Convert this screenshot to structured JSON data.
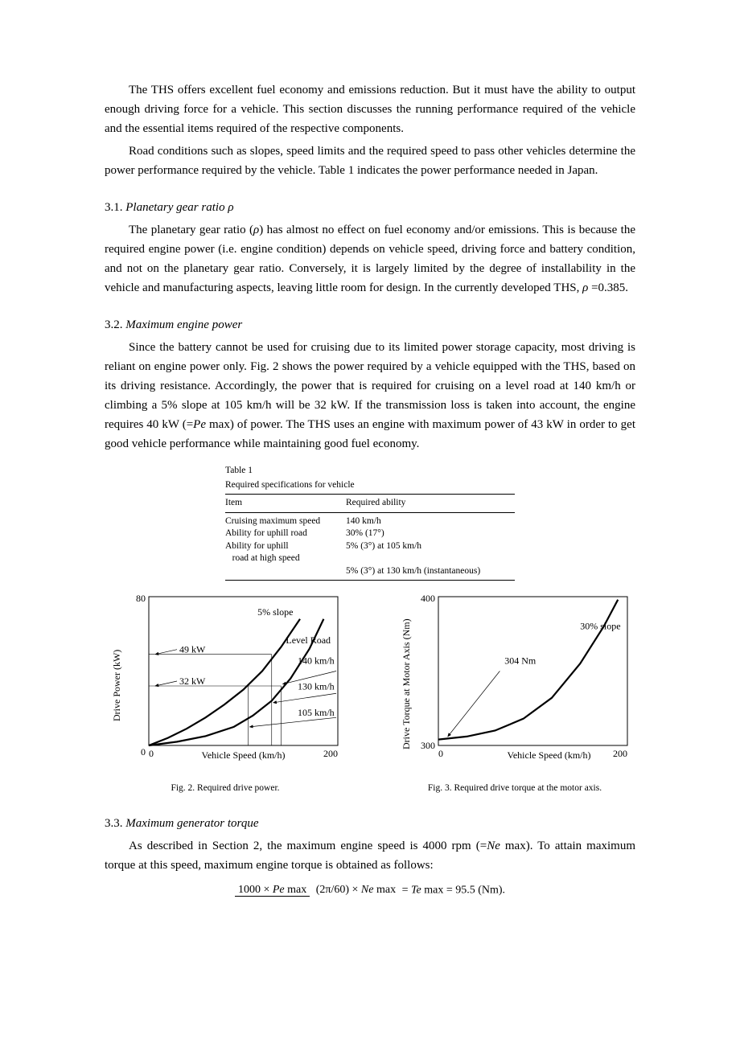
{
  "intro": {
    "p1": "The THS offers excellent fuel economy and emissions reduction. But it must have the ability to output enough driving force for a vehicle. This section discusses the running performance required of the vehicle and the essential items required of the respective components.",
    "p2": "Road conditions such as slopes, speed limits and the required speed to pass other vehicles determine the power performance required by the vehicle. Table 1 indicates the power performance needed in Japan."
  },
  "sec31": {
    "heading_num": "3.1. ",
    "heading_text": "Planetary gear ratio ρ",
    "p1a": "The planetary gear ratio (",
    "p1b": ") has almost no effect on fuel economy and/or emissions. This is because the required engine power (i.e. engine condition) depends on vehicle speed, driving force and battery condition, and not on the planetary gear ratio. Conversely, it is largely limited by the degree of installability in the vehicle and manufacturing aspects, leaving little room for design. In the currently developed THS, ",
    "rho": "ρ",
    "p1c": " =0.385."
  },
  "sec32": {
    "heading_num": "3.2. ",
    "heading_text": "Maximum engine power",
    "p1a": "Since the battery cannot be used for cruising due to its limited power storage capacity, most driving is reliant on engine power only. Fig. 2 shows the power required by a vehicle equipped with the THS, based on its driving resistance. Accordingly, the power that is required for cruising on a level road at 140 km/h or climbing a 5% slope at 105 km/h will be 32 kW. If the transmission loss is taken into account, the engine requires 40 kW (=",
    "pe": "Pe",
    "p1b": " max) of power. The THS uses an engine with maximum power of 43 kW in order to get good vehicle performance while maintaining good fuel economy."
  },
  "table1": {
    "title": "Table 1",
    "caption": "Required specifications for vehicle",
    "head_col1": "Item",
    "head_col2": "Required ability",
    "rows": [
      {
        "c1": "Cruising maximum speed",
        "c2": "140 km/h"
      },
      {
        "c1": "Ability for uphill road",
        "c2": "30% (17°)"
      },
      {
        "c1": "Ability for uphill",
        "c2": "5% (3°) at 105 km/h"
      },
      {
        "c1": "   road at high speed",
        "c2": ""
      },
      {
        "c1": "",
        "c2": "5% (3°) at 130 km/h (instantaneous)"
      }
    ]
  },
  "fig2": {
    "caption": "Fig. 2.  Required drive power.",
    "xlabel": "Vehicle Speed (km/h)",
    "ylabel": "Drive Power (kW)",
    "xlim": [
      0,
      200
    ],
    "ylim": [
      0,
      80
    ],
    "x_ticks": [
      "0",
      "200"
    ],
    "y_ticks": [
      "0",
      "80"
    ],
    "curves": {
      "slope5": {
        "label": "5% slope",
        "color": "#000000",
        "width": 2.2,
        "points": [
          [
            0,
            0
          ],
          [
            20,
            4
          ],
          [
            40,
            9
          ],
          [
            60,
            15
          ],
          [
            80,
            22
          ],
          [
            100,
            30
          ],
          [
            120,
            40
          ],
          [
            140,
            53
          ],
          [
            160,
            68
          ]
        ]
      },
      "level": {
        "label": "Level Road",
        "color": "#000000",
        "width": 2.2,
        "points": [
          [
            0,
            0
          ],
          [
            30,
            2
          ],
          [
            60,
            5
          ],
          [
            90,
            10
          ],
          [
            110,
            16
          ],
          [
            130,
            24
          ],
          [
            150,
            36
          ],
          [
            170,
            52
          ],
          [
            185,
            68
          ]
        ]
      }
    },
    "annotations": {
      "kw49": "49 kW",
      "kw32": "32 kW",
      "s140": "140 km/h",
      "s130": "130 km/h",
      "s105": "105 km/h"
    },
    "guides": {
      "h49": 49,
      "h32": 32,
      "v140": 140,
      "v130": 130,
      "v105": 105
    },
    "axis_color": "#000000",
    "plot_bg": "#ffffff"
  },
  "fig3": {
    "caption": "Fig. 3.  Required drive torque at the motor axis.",
    "xlabel": "Vehicle Speed (km/h)",
    "ylabel": "Drive Torque at Motor Axis (Nm)",
    "xlim": [
      0,
      200
    ],
    "ylim": [
      300,
      400
    ],
    "x_ticks": [
      "0",
      "200"
    ],
    "y_ticks": [
      "300",
      "400"
    ],
    "curve": {
      "label": "30% slope",
      "color": "#000000",
      "width": 2.2,
      "points": [
        [
          0,
          304
        ],
        [
          30,
          306
        ],
        [
          60,
          310
        ],
        [
          90,
          318
        ],
        [
          120,
          332
        ],
        [
          150,
          355
        ],
        [
          175,
          380
        ],
        [
          190,
          398
        ]
      ]
    },
    "annotation_304": "304 Nm",
    "axis_color": "#000000",
    "plot_bg": "#ffffff"
  },
  "sec33": {
    "heading_num": "3.3. ",
    "heading_text": "Maximum generator torque",
    "p1a": "As described in Section 2, the maximum engine speed is 4000 rpm (=",
    "ne": "Ne",
    "p1b": " max). To attain maximum torque at this speed, maximum engine torque is obtained as follows:"
  },
  "formula": {
    "num_a": "1000 × ",
    "num_b": "Pe",
    "num_c": " max",
    "den_a": "(2π/60) × ",
    "den_b": "Ne",
    "den_c": " max",
    "eq_a": " = ",
    "eq_b": "Te",
    "eq_c": " max = 95.5 (Nm)."
  }
}
